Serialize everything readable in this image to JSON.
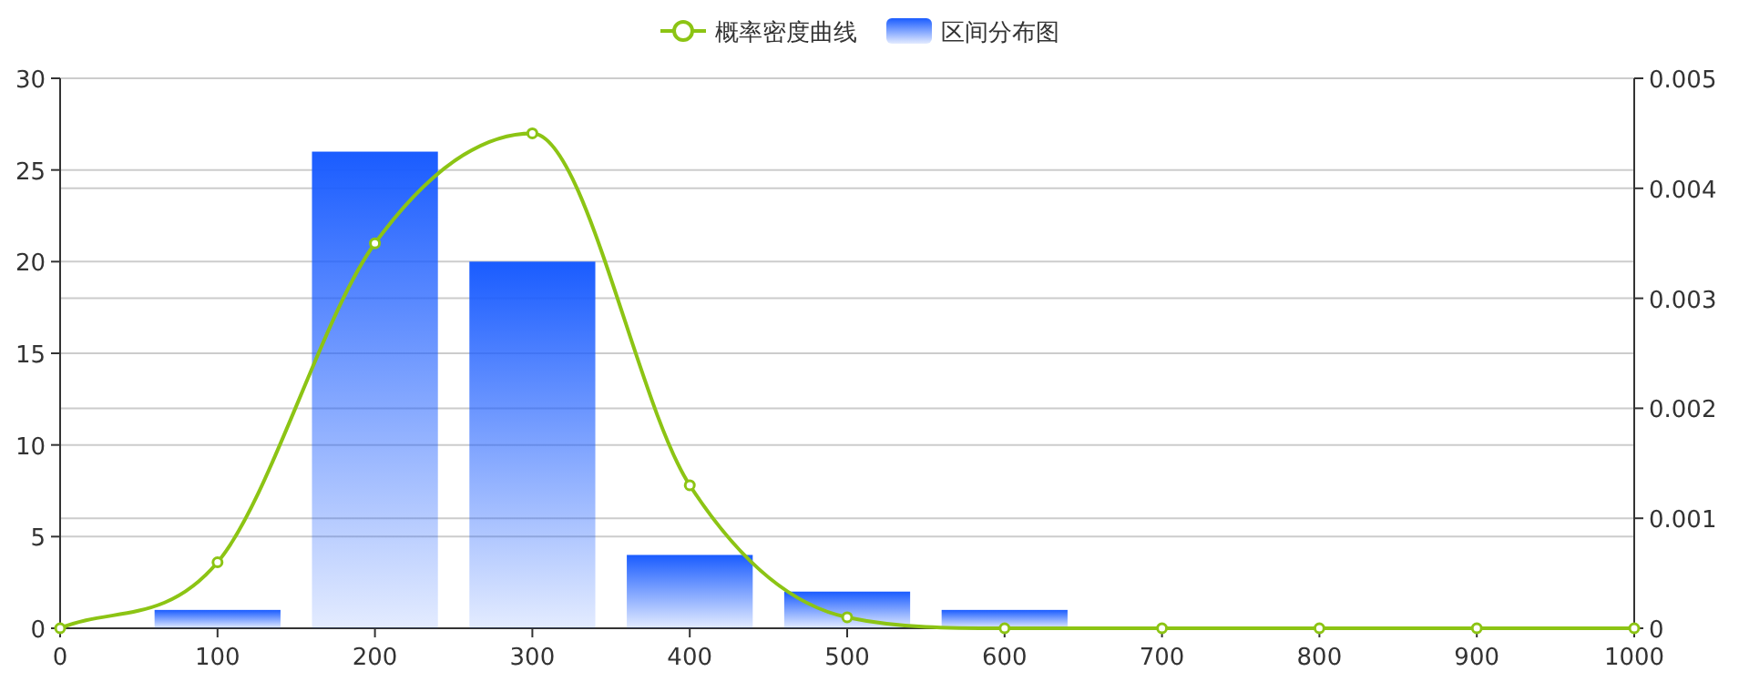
{
  "chart_data": {
    "type": "bar",
    "xlim": [
      0,
      1000
    ],
    "xticks": [
      0,
      100,
      200,
      300,
      400,
      500,
      600,
      700,
      800,
      900,
      1000
    ],
    "ylim": [
      0,
      30
    ],
    "yticks": [
      0,
      5,
      10,
      15,
      20,
      25,
      30
    ],
    "y2lim": [
      0,
      0.005
    ],
    "y2ticks": [
      0,
      0.001,
      0.002,
      0.003,
      0.004,
      0.005
    ],
    "grid": "y",
    "legend": "top",
    "series": [
      {
        "name": "概率密度曲线",
        "type": "line",
        "axis": "y2",
        "color": "#8cc414",
        "marker": "circle",
        "x": [
          0,
          100,
          200,
          300,
          400,
          500,
          600,
          700,
          800,
          900,
          1000
        ],
        "values": [
          0,
          0.0006,
          0.0035,
          0.0045,
          0.0013,
          0.0001,
          0,
          0,
          0,
          0,
          0
        ]
      },
      {
        "name": "区间分布图",
        "color": "#1a5cff",
        "x": [
          100,
          200,
          300,
          400,
          500,
          600
        ],
        "values": [
          1,
          26,
          20,
          4,
          2,
          1
        ]
      }
    ]
  }
}
